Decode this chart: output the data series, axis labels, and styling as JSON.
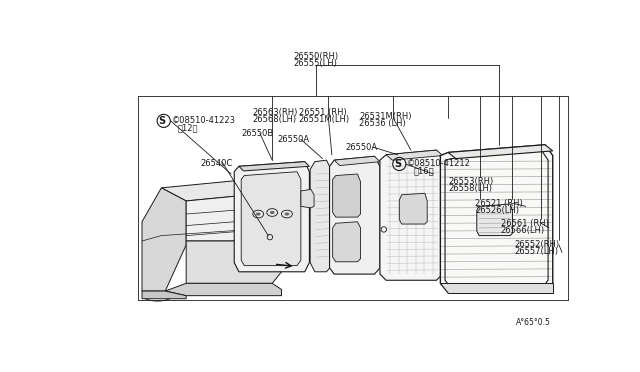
{
  "bg_color": "#ffffff",
  "line_color": "#1a1a1a",
  "text_color": "#1a1a1a",
  "label_color": "#333333",
  "fig_width": 6.4,
  "fig_height": 3.72,
  "dpi": 100,
  "bottom_right_text": "A°65°0.5",
  "labels": {
    "top1": "26550(RH)",
    "top2": "26555(LH)",
    "s1_text": "©08510-41223",
    "s1_sub": "（12）",
    "lb_26563": "26563(RH)",
    "lb_26568": "26568(LH)",
    "lb_26551": "26551 (RH)",
    "lb_26551m": "26551M(LH)",
    "lb_26550b": "26550B",
    "lb_26550a1": "26550A",
    "lb_26531m": "26531M(RH)",
    "lb_26536": "26536 (LH)",
    "lb_26550a2": "26550A",
    "s2_text": "©08510-41212",
    "s2_sub": "（16）",
    "lb_26540c": "26540C",
    "lb_26553": "26553(RH)",
    "lb_26558": "26558(LH)",
    "lb_26521": "26521 (RH)",
    "lb_26526": "26526(LH)",
    "lb_26561": "26561 (RH)",
    "lb_26566": "26566(LH)",
    "lb_26552": "26552(RH)",
    "lb_26557": "26557(LH)"
  }
}
